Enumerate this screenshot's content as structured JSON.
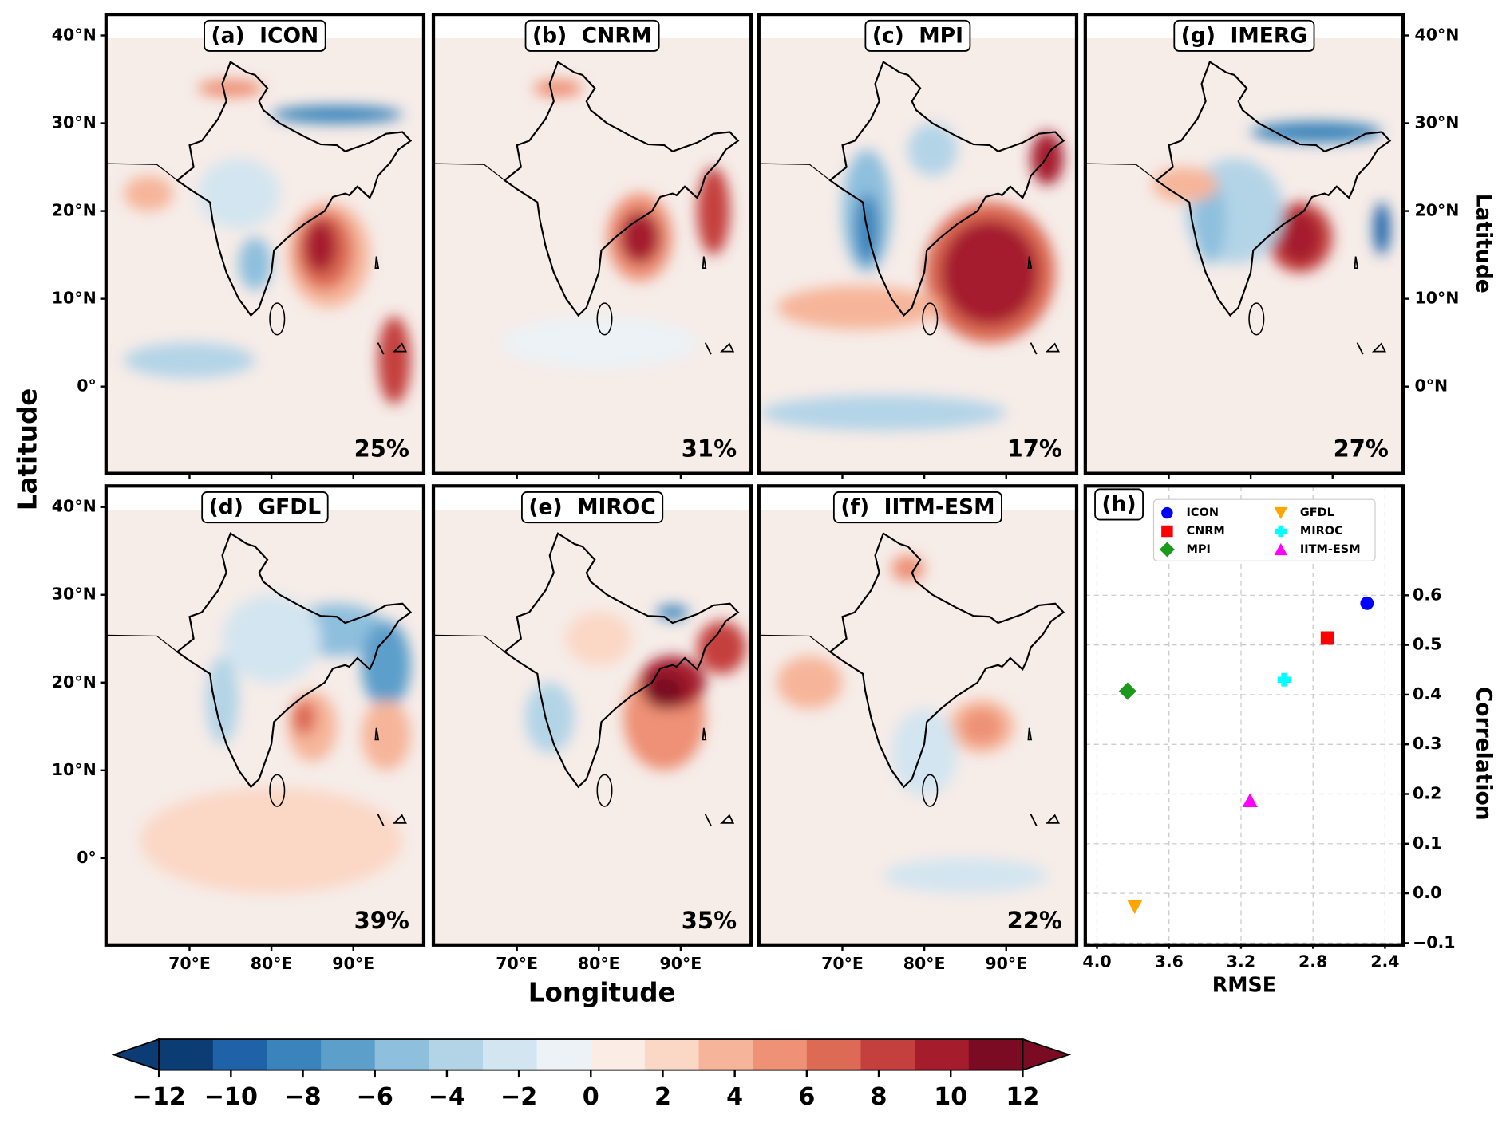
{
  "maps": {
    "panels": [
      {
        "title": "(a)  ICON",
        "score": "25%"
      },
      {
        "title": "(b)  CNRM",
        "score": "31%"
      },
      {
        "title": "(c)  MPI",
        "score": "17%"
      },
      {
        "title": "(g)  IMERG",
        "score": "27%"
      },
      {
        "title": "(d)  GFDL",
        "score": "39%"
      },
      {
        "title": "(e)  MIROC",
        "score": "35%"
      },
      {
        "title": "(f)  IITM-ESM",
        "score": "22%"
      }
    ],
    "x_label": "Longitude",
    "y_label": "Latitude",
    "y_label_right": "Latitude",
    "lon_lim": [
      59.8,
      98.6
    ],
    "lat_lim": [
      -9.9,
      42.4
    ],
    "lon_ticks": [
      {
        "value": 70,
        "label": "70°E"
      },
      {
        "value": 80,
        "label": "80°E"
      },
      {
        "value": 90,
        "label": "90°E"
      }
    ],
    "lat_ticks": [
      {
        "value": 40,
        "label": "40°N"
      },
      {
        "value": 30,
        "label": "30°N"
      },
      {
        "value": 20,
        "label": "20°N"
      },
      {
        "value": 10,
        "label": "10°N"
      },
      {
        "value": 0,
        "label": "0°"
      }
    ],
    "lat_ticks_right": [
      {
        "value": 40,
        "label": "40°N"
      },
      {
        "value": 30,
        "label": "30°N"
      },
      {
        "value": 20,
        "label": "20°N"
      },
      {
        "value": 10,
        "label": "10°N"
      },
      {
        "value": 0,
        "label": "0°N"
      }
    ]
  },
  "colorbar": {
    "lim": [
      -12,
      12
    ],
    "ticks": [
      {
        "value": -12,
        "label": "−12"
      },
      {
        "value": -10,
        "label": "−10"
      },
      {
        "value": -8,
        "label": "−8"
      },
      {
        "value": -6,
        "label": "−6"
      },
      {
        "value": -4,
        "label": "−4"
      },
      {
        "value": -2,
        "label": "−2"
      },
      0,
      2,
      4,
      6,
      8,
      10,
      12
    ],
    "colors": [
      "#0b3c73",
      "#1f62a8",
      "#3a84bb",
      "#5c9fcb",
      "#8ebfdd",
      "#b3d4e7",
      "#d3e5f0",
      "#ecf2f6",
      "#fbece6",
      "#fbd7c5",
      "#f6b59a",
      "#ee9176",
      "#dc6a55",
      "#c4403e",
      "#a51d2d",
      "#7a0b22"
    ]
  },
  "chart_data": {
    "type": "scatter",
    "title": "(h)",
    "x_label": "RMSE",
    "y_label": "Correlation",
    "xlim": [
      4.065,
      2.3
    ],
    "ylim": [
      -0.1,
      0.82
    ],
    "xticks": [
      {
        "value": 4,
        "label": "4.0"
      },
      {
        "value": 3.6,
        "label": "3.6"
      },
      {
        "value": 3.2,
        "label": "3.2"
      },
      {
        "value": 2.8,
        "label": "2.8"
      },
      {
        "value": 2.4,
        "label": "2.4"
      }
    ],
    "yticks": [
      {
        "value": -0.1,
        "label": "−0.1"
      },
      {
        "value": 0,
        "label": "0.0"
      },
      0.1,
      0.2,
      0.3,
      0.4,
      0.5,
      0.6
    ],
    "grid": true,
    "series": [
      {
        "name": "ICON",
        "color": "#0000ff",
        "marker": "circle",
        "x": [
          2.5
        ],
        "values": [
          0.584
        ]
      },
      {
        "name": "CNRM",
        "color": "#ff0000",
        "marker": "square",
        "x": [
          2.72
        ],
        "values": [
          0.514
        ]
      },
      {
        "name": "MPI",
        "color": "#1a9a1a",
        "marker": "diamond",
        "x": [
          3.83
        ],
        "values": [
          0.407
        ]
      },
      {
        "name": "GFDL",
        "color": "#ffa500",
        "marker": "triangle-down",
        "x": [
          3.79
        ],
        "values": [
          -0.027
        ]
      },
      {
        "name": "MIROC",
        "color": "#00ffff",
        "marker": "plus",
        "x": [
          2.96
        ],
        "values": [
          0.43
        ]
      },
      {
        "name": "IITM-ESM",
        "color": "#ff00ff",
        "marker": "triangle-up",
        "x": [
          3.15
        ],
        "values": [
          0.187
        ]
      }
    ]
  }
}
